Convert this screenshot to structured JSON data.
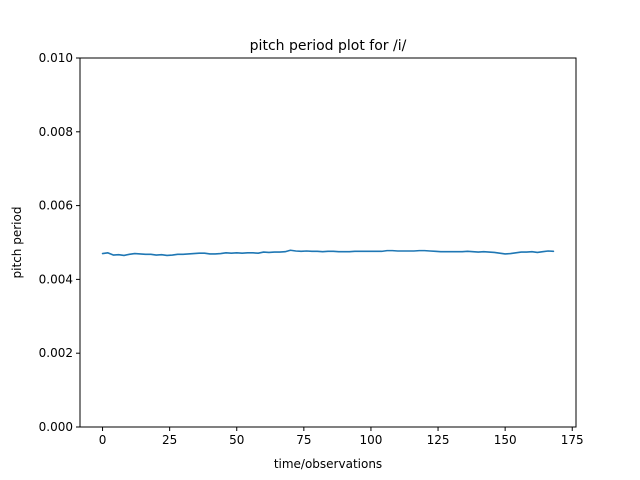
{
  "chart_data": {
    "type": "line",
    "title": "pitch period plot for /i/",
    "xlabel": "time/observations",
    "ylabel": "pitch period",
    "xlim": [
      -8.4,
      176.4
    ],
    "ylim": [
      0.0,
      0.01
    ],
    "xticks": [
      0,
      25,
      50,
      75,
      100,
      125,
      150,
      175
    ],
    "yticks": [
      0.0,
      0.002,
      0.004,
      0.006,
      0.008,
      0.01
    ],
    "xtick_labels": [
      "0",
      "25",
      "50",
      "75",
      "100",
      "125",
      "150",
      "175"
    ],
    "ytick_labels": [
      "0.000",
      "0.002",
      "0.004",
      "0.006",
      "0.008",
      "0.010"
    ],
    "grid": false,
    "series": [
      {
        "color": "#1f77b4",
        "points": [
          [
            0,
            0.0047
          ],
          [
            2,
            0.00472
          ],
          [
            4,
            0.00466
          ],
          [
            6,
            0.00467
          ],
          [
            8,
            0.00465
          ],
          [
            10,
            0.00468
          ],
          [
            12,
            0.0047
          ],
          [
            14,
            0.00469
          ],
          [
            16,
            0.00468
          ],
          [
            18,
            0.00468
          ],
          [
            20,
            0.00466
          ],
          [
            22,
            0.00467
          ],
          [
            24,
            0.00465
          ],
          [
            26,
            0.00466
          ],
          [
            28,
            0.00468
          ],
          [
            30,
            0.00468
          ],
          [
            32,
            0.00469
          ],
          [
            34,
            0.0047
          ],
          [
            36,
            0.00471
          ],
          [
            38,
            0.00471
          ],
          [
            40,
            0.00469
          ],
          [
            42,
            0.00469
          ],
          [
            44,
            0.0047
          ],
          [
            46,
            0.00472
          ],
          [
            48,
            0.00471
          ],
          [
            50,
            0.00472
          ],
          [
            52,
            0.00471
          ],
          [
            54,
            0.00472
          ],
          [
            56,
            0.00472
          ],
          [
            58,
            0.00471
          ],
          [
            60,
            0.00474
          ],
          [
            62,
            0.00473
          ],
          [
            64,
            0.00474
          ],
          [
            66,
            0.00474
          ],
          [
            68,
            0.00475
          ],
          [
            70,
            0.00479
          ],
          [
            72,
            0.00477
          ],
          [
            74,
            0.00476
          ],
          [
            76,
            0.00477
          ],
          [
            78,
            0.00476
          ],
          [
            80,
            0.00476
          ],
          [
            82,
            0.00475
          ],
          [
            84,
            0.00476
          ],
          [
            86,
            0.00476
          ],
          [
            88,
            0.00475
          ],
          [
            90,
            0.00475
          ],
          [
            92,
            0.00475
          ],
          [
            94,
            0.00476
          ],
          [
            96,
            0.00476
          ],
          [
            98,
            0.00476
          ],
          [
            100,
            0.00476
          ],
          [
            102,
            0.00476
          ],
          [
            104,
            0.00476
          ],
          [
            106,
            0.00478
          ],
          [
            108,
            0.00478
          ],
          [
            110,
            0.00477
          ],
          [
            112,
            0.00477
          ],
          [
            114,
            0.00477
          ],
          [
            116,
            0.00477
          ],
          [
            118,
            0.00478
          ],
          [
            120,
            0.00478
          ],
          [
            122,
            0.00477
          ],
          [
            124,
            0.00476
          ],
          [
            126,
            0.00475
          ],
          [
            128,
            0.00475
          ],
          [
            130,
            0.00475
          ],
          [
            132,
            0.00475
          ],
          [
            134,
            0.00475
          ],
          [
            136,
            0.00476
          ],
          [
            138,
            0.00475
          ],
          [
            140,
            0.00474
          ],
          [
            142,
            0.00475
          ],
          [
            144,
            0.00474
          ],
          [
            146,
            0.00473
          ],
          [
            148,
            0.00471
          ],
          [
            150,
            0.00469
          ],
          [
            152,
            0.0047
          ],
          [
            154,
            0.00472
          ],
          [
            156,
            0.00474
          ],
          [
            158,
            0.00474
          ],
          [
            160,
            0.00475
          ],
          [
            162,
            0.00473
          ],
          [
            164,
            0.00475
          ],
          [
            166,
            0.00477
          ],
          [
            168,
            0.00476
          ]
        ]
      }
    ]
  }
}
